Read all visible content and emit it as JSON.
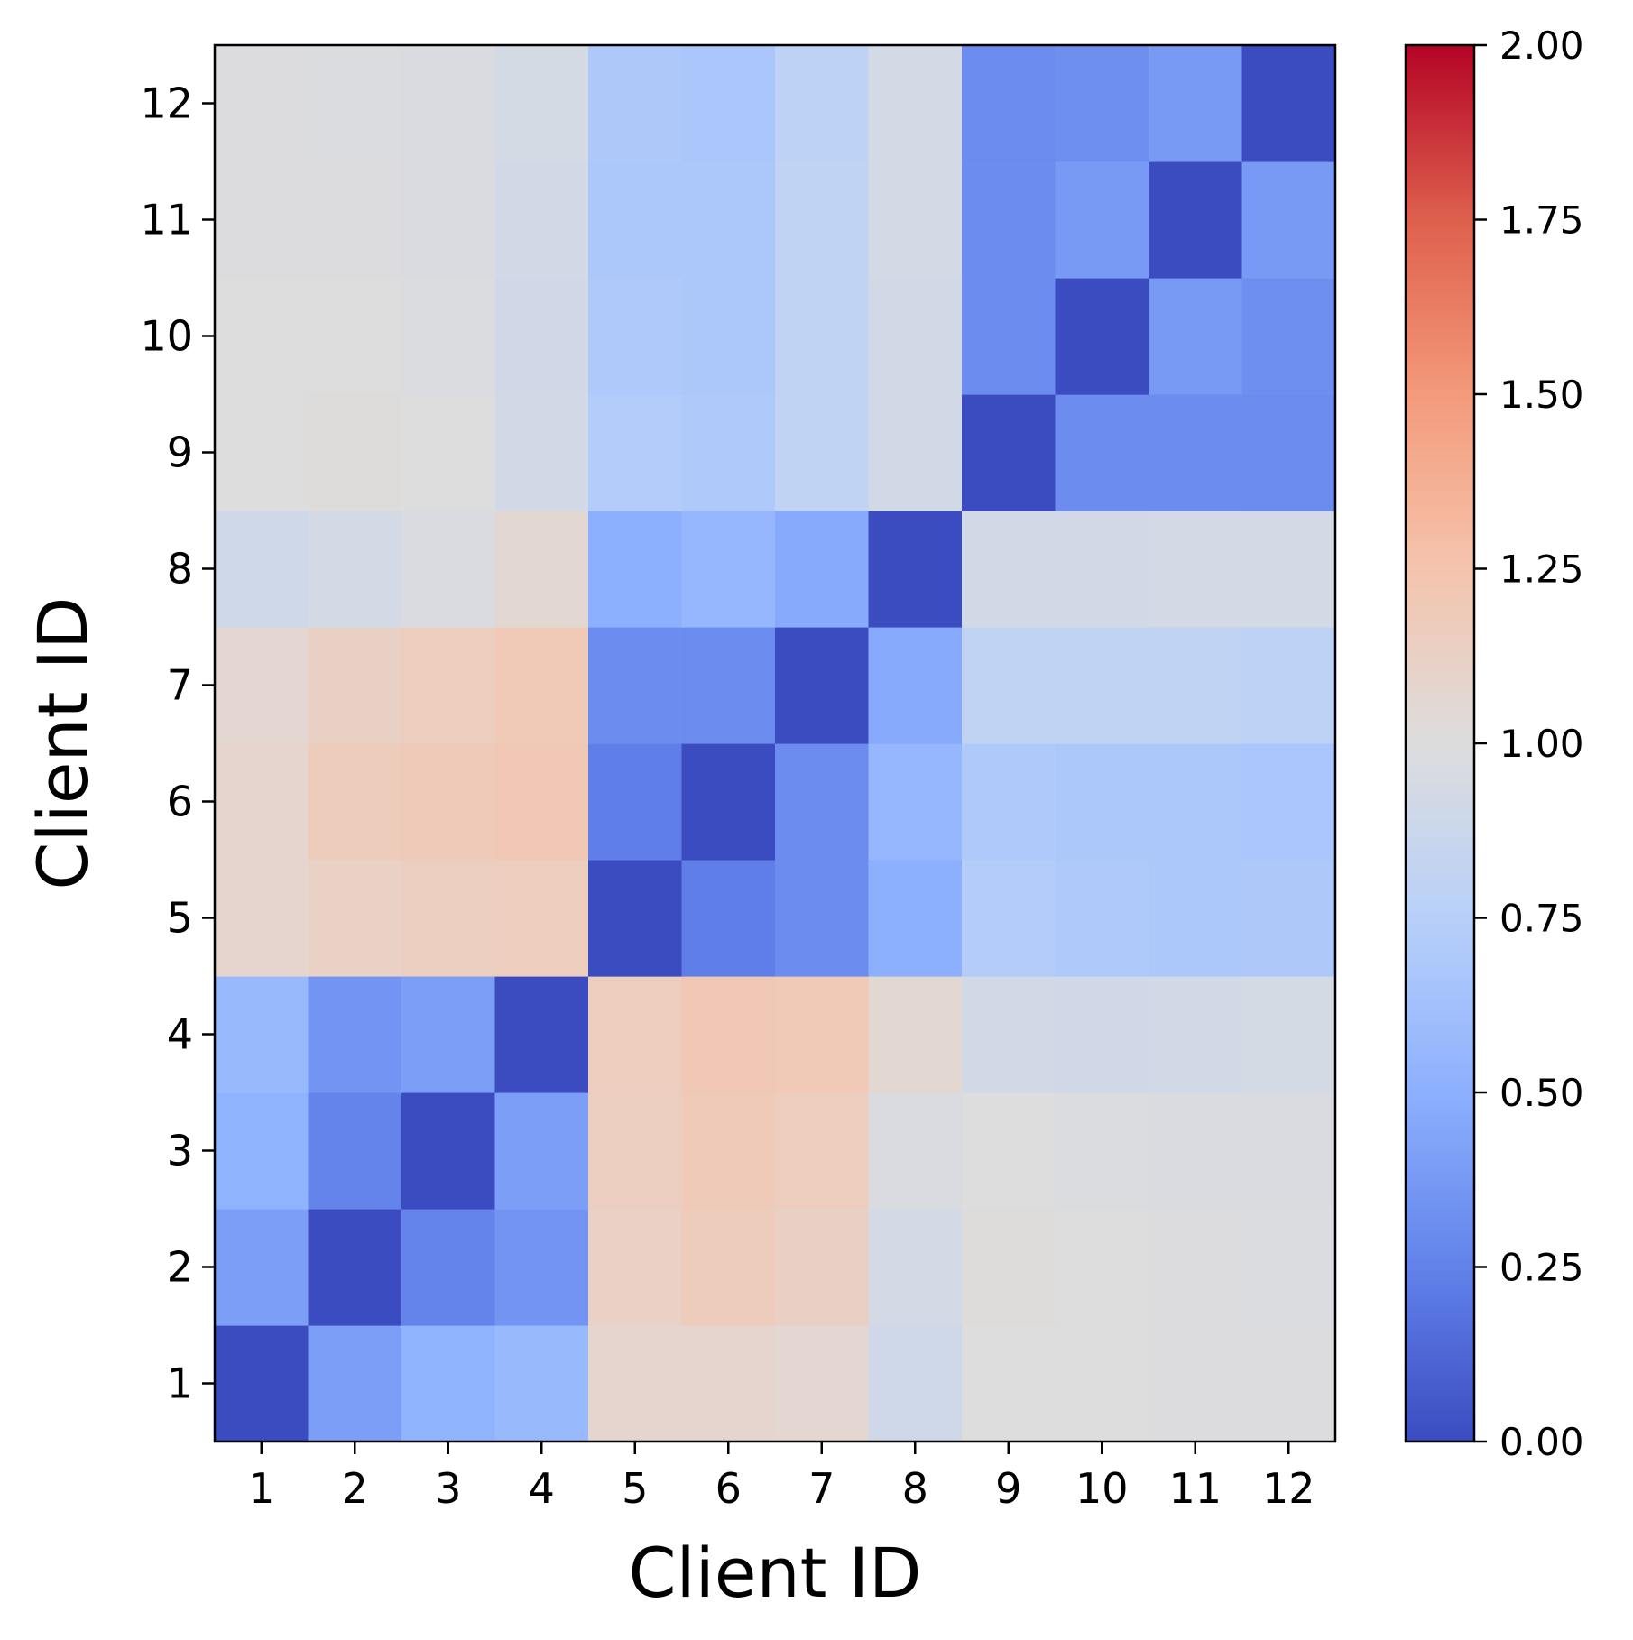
{
  "chart_data": {
    "type": "heatmap",
    "title": "",
    "xlabel": "Client ID",
    "ylabel": "Client ID",
    "x_categories": [
      "1",
      "2",
      "3",
      "4",
      "5",
      "6",
      "7",
      "8",
      "9",
      "10",
      "11",
      "12"
    ],
    "y_categories": [
      "1",
      "2",
      "3",
      "4",
      "5",
      "6",
      "7",
      "8",
      "9",
      "10",
      "11",
      "12"
    ],
    "y_order": "bottom-to-top",
    "colormap": "coolwarm",
    "vmin": 0.0,
    "vmax": 2.0,
    "colorbar_ticks": [
      "0.00",
      "0.25",
      "0.50",
      "0.75",
      "1.00",
      "1.25",
      "1.50",
      "1.75",
      "2.00"
    ],
    "values": [
      [
        0.0,
        0.4,
        0.52,
        0.57,
        1.08,
        1.08,
        1.07,
        0.9,
        1.0,
        1.0,
        0.99,
        0.99
      ],
      [
        0.4,
        0.0,
        0.26,
        0.35,
        1.12,
        1.17,
        1.13,
        0.93,
        1.01,
        1.0,
        0.99,
        0.98
      ],
      [
        0.52,
        0.26,
        0.0,
        0.4,
        1.15,
        1.19,
        1.16,
        0.97,
        1.0,
        0.98,
        0.97,
        0.97
      ],
      [
        0.57,
        0.35,
        0.4,
        0.0,
        1.16,
        1.21,
        1.2,
        1.06,
        0.92,
        0.91,
        0.92,
        0.94
      ],
      [
        1.08,
        1.12,
        1.15,
        1.16,
        0.0,
        0.23,
        0.31,
        0.5,
        0.72,
        0.7,
        0.68,
        0.69
      ],
      [
        1.08,
        1.17,
        1.19,
        1.21,
        0.23,
        0.0,
        0.3,
        0.55,
        0.7,
        0.68,
        0.68,
        0.67
      ],
      [
        1.07,
        1.13,
        1.16,
        1.2,
        0.31,
        0.3,
        0.0,
        0.47,
        0.81,
        0.81,
        0.81,
        0.79
      ],
      [
        0.9,
        0.93,
        0.97,
        1.06,
        0.5,
        0.55,
        0.47,
        0.0,
        0.92,
        0.92,
        0.93,
        0.93
      ],
      [
        1.0,
        1.01,
        1.0,
        0.92,
        0.72,
        0.7,
        0.81,
        0.92,
        0.0,
        0.31,
        0.31,
        0.3
      ],
      [
        1.0,
        1.0,
        0.98,
        0.91,
        0.7,
        0.68,
        0.81,
        0.92,
        0.31,
        0.0,
        0.38,
        0.32
      ],
      [
        0.99,
        0.99,
        0.97,
        0.92,
        0.68,
        0.68,
        0.81,
        0.93,
        0.31,
        0.38,
        0.0,
        0.38
      ],
      [
        0.99,
        0.98,
        0.97,
        0.94,
        0.69,
        0.67,
        0.79,
        0.93,
        0.3,
        0.32,
        0.38,
        0.0
      ]
    ],
    "legend": "colorbar-right",
    "grid": false
  }
}
